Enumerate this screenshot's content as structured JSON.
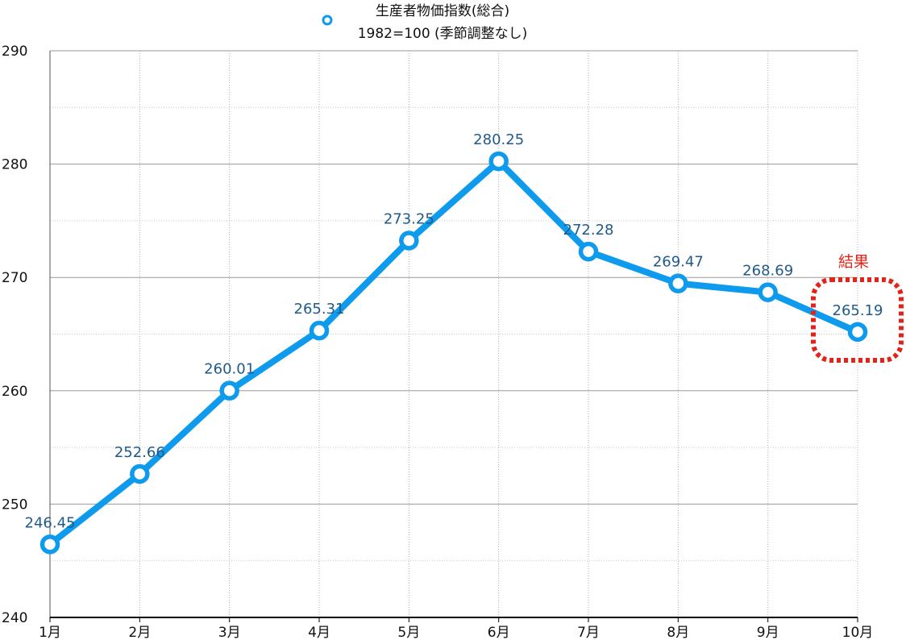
{
  "chart_data": {
    "type": "line",
    "categories": [
      "1月",
      "2月",
      "3月",
      "4月",
      "5月",
      "6月",
      "7月",
      "8月",
      "9月",
      "10月"
    ],
    "series": [
      {
        "name": "生産者物価指数(総合)",
        "name_line2": "1982=100 (季節調整なし)",
        "values": [
          246.45,
          252.66,
          260.01,
          265.31,
          273.25,
          280.25,
          272.28,
          269.47,
          268.69,
          265.19
        ],
        "labels": [
          "246.45",
          "252.66",
          "260.01",
          "265.31",
          "273.25",
          "280.25",
          "272.28",
          "269.47",
          "268.69",
          "265.19"
        ],
        "color": "#0f9bed"
      }
    ],
    "ylim": [
      240,
      290
    ],
    "yticks": [
      "240",
      "250",
      "260",
      "270",
      "280",
      "290"
    ],
    "grid": true,
    "legend_position": "top-center",
    "annotation": {
      "text": "結果",
      "target_category": "10月",
      "color": "#e2231a"
    }
  }
}
